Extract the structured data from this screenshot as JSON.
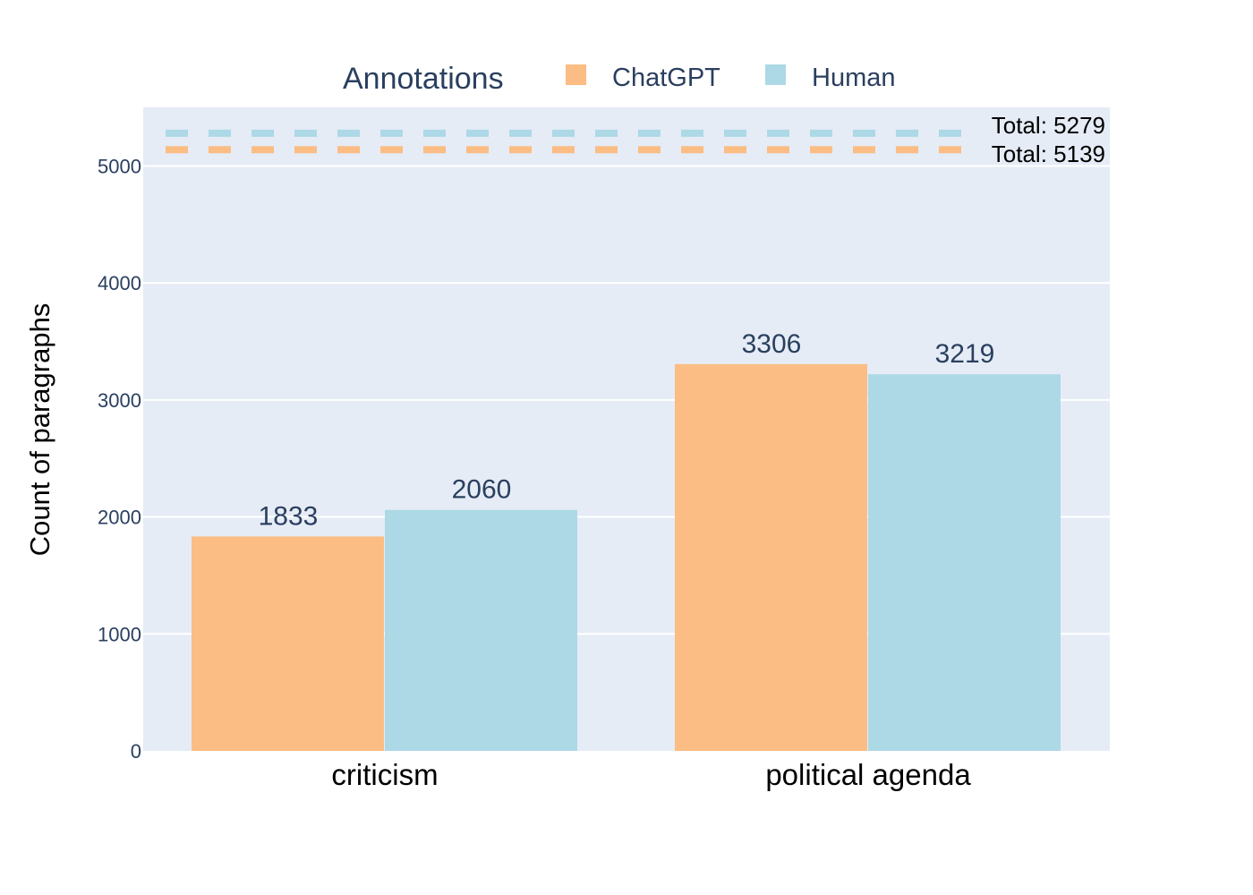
{
  "chart_data": {
    "type": "bar",
    "categories": [
      "criticism",
      "political agenda"
    ],
    "series": [
      {
        "name": "ChatGPT",
        "values": [
          1833,
          3306
        ],
        "color": "#fbbd83"
      },
      {
        "name": "Human",
        "values": [
          2060,
          3219
        ],
        "color": "#add8e6"
      }
    ],
    "xlabel": "",
    "ylabel": "Count of paragraphs",
    "ylim": [
      0,
      5500
    ],
    "yticks": [
      0,
      1000,
      2000,
      3000,
      4000,
      5000
    ],
    "legend": {
      "title": "Annotations",
      "position": "top"
    },
    "totals": [
      {
        "series": "Human",
        "value": 5279,
        "label": "Total: 5279"
      },
      {
        "series": "ChatGPT",
        "value": 5139,
        "label": "Total: 5139"
      }
    ],
    "grid": true,
    "plot_background": "#e5ecf6"
  }
}
